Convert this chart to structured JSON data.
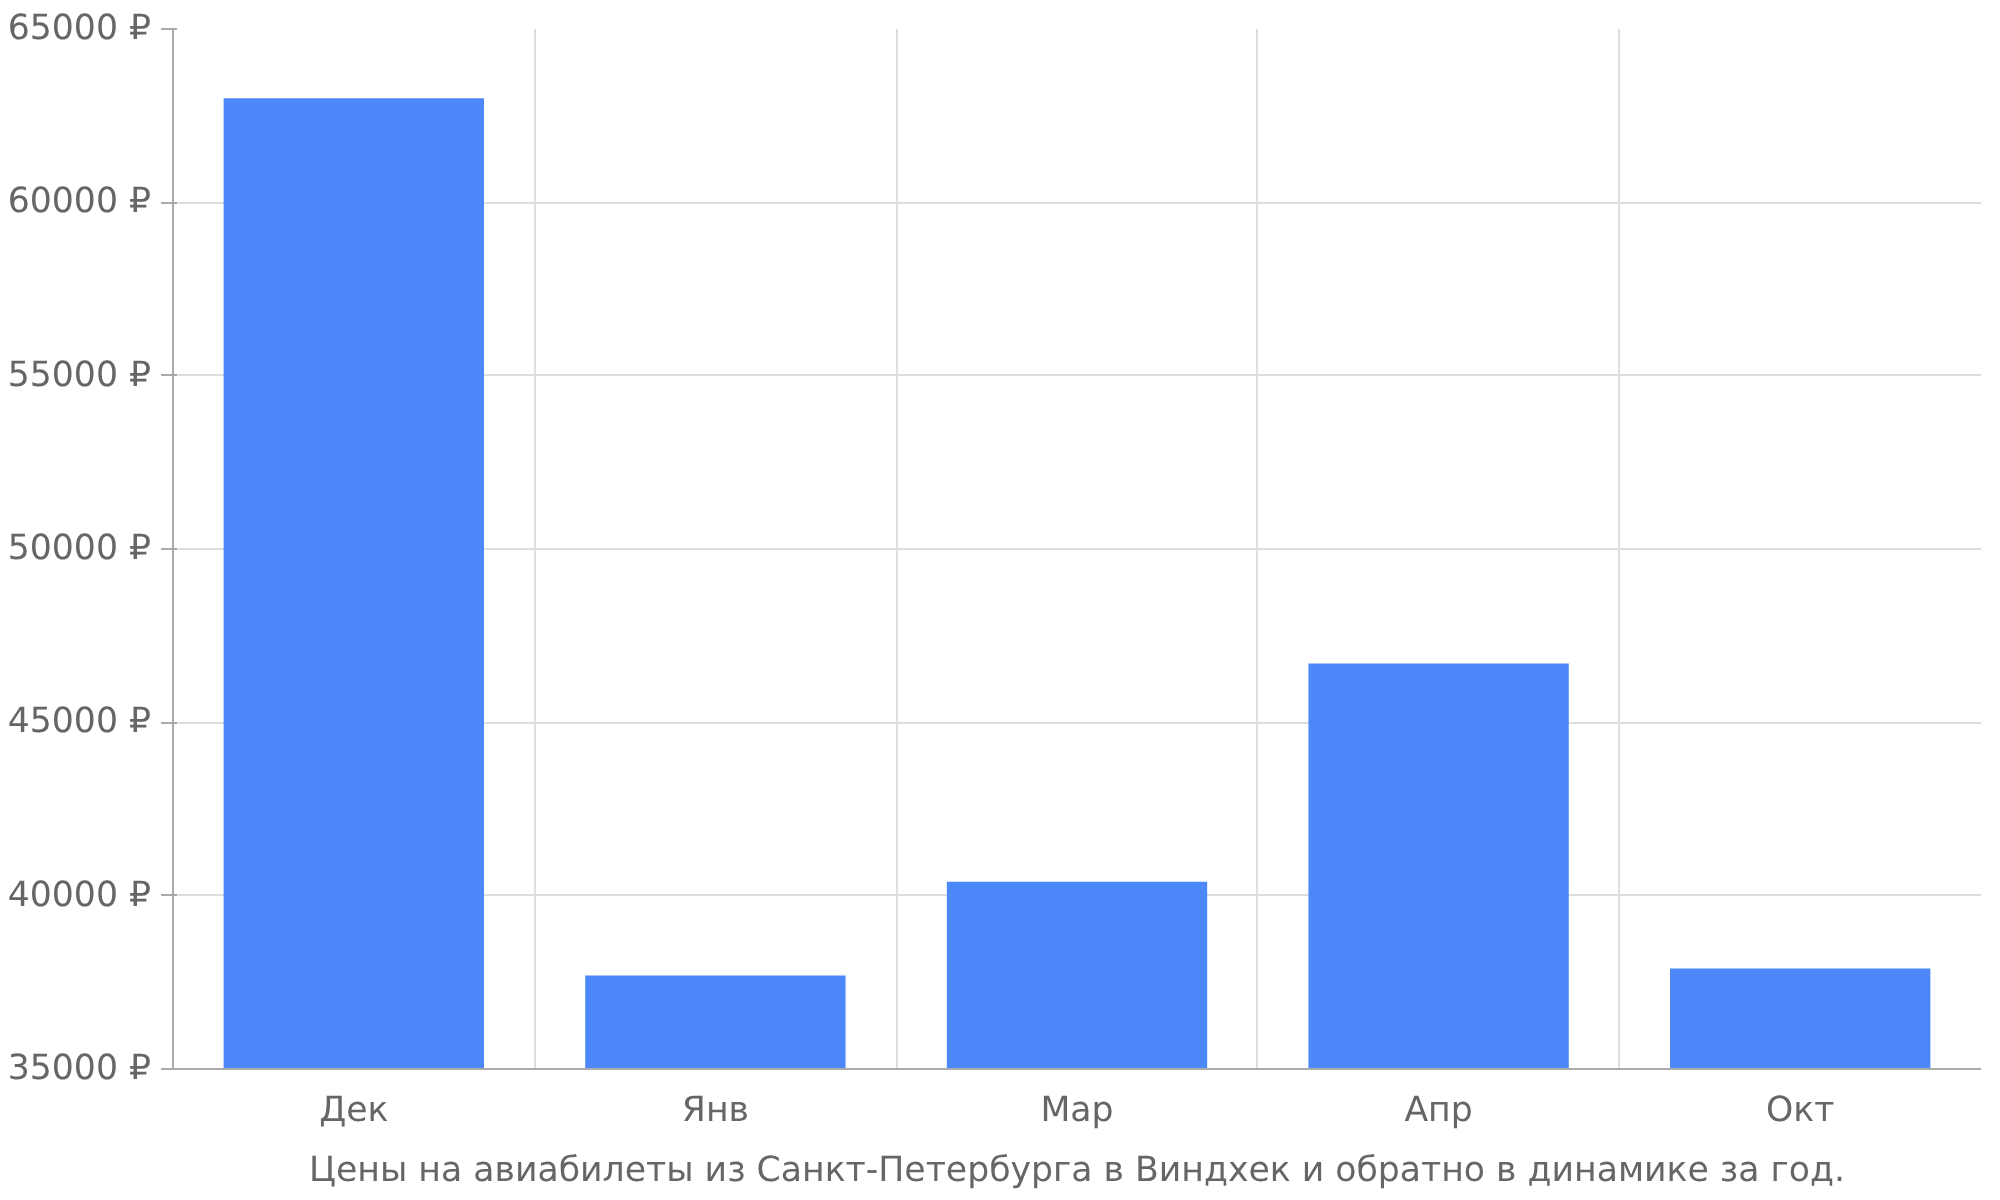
{
  "chart_data": {
    "type": "bar",
    "categories": [
      "Дек",
      "Янв",
      "Мар",
      "Апр",
      "Окт"
    ],
    "values": [
      63000,
      37700,
      40400,
      46700,
      37900
    ],
    "color": "#4d88fa",
    "ylim": [
      35000,
      65000
    ],
    "yticks": [
      {
        "value": 35000,
        "label": "35000 ₽"
      },
      {
        "value": 40000,
        "label": "40000 ₽"
      },
      {
        "value": 45000,
        "label": "45000 ₽"
      },
      {
        "value": 50000,
        "label": "50000 ₽"
      },
      {
        "value": 55000,
        "label": "55000 ₽"
      },
      {
        "value": 60000,
        "label": "60000 ₽"
      },
      {
        "value": 65000,
        "label": "65000 ₽"
      }
    ],
    "grid": true,
    "annotations": [
      "Цены на авиабилеты из Санкт-Петербурга в Виндхек и обратно в динамике за год."
    ]
  }
}
